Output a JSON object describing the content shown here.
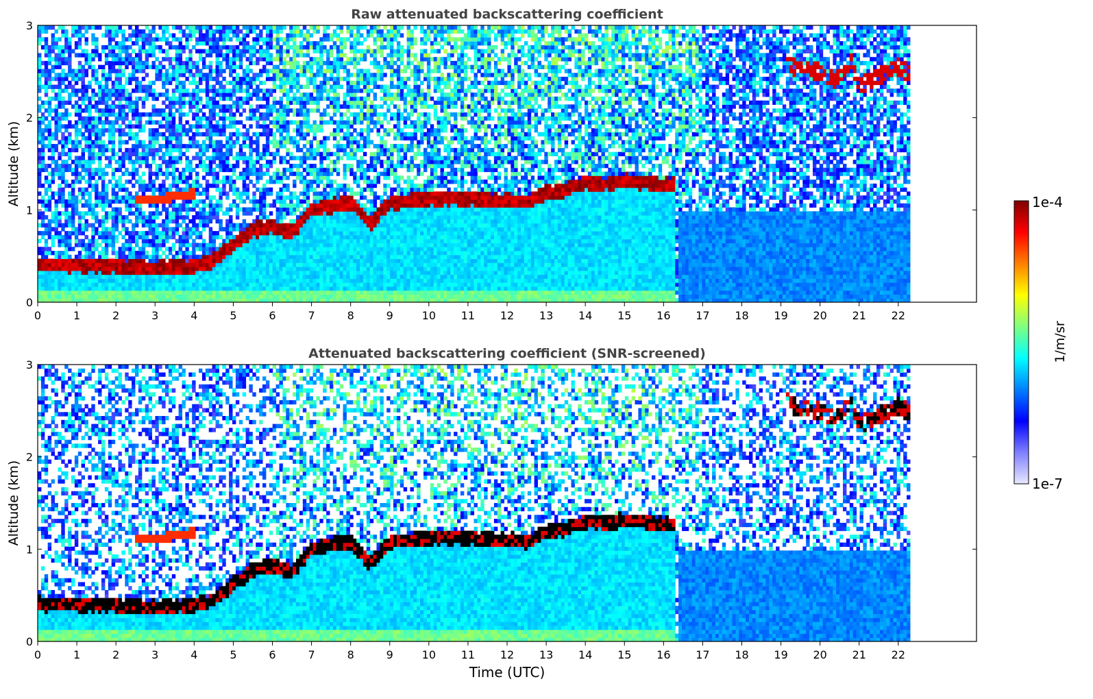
{
  "chart_data": [
    {
      "type": "heatmap",
      "title": "Raw attenuated backscattering coefficient",
      "xlabel": "",
      "ylabel": "Altitude (km)",
      "xlim": [
        0,
        24
      ],
      "ylim": [
        0,
        3
      ],
      "x_ticks": [
        "0",
        "1",
        "2",
        "3",
        "4",
        "5",
        "6",
        "7",
        "8",
        "9",
        "10",
        "11",
        "12",
        "13",
        "14",
        "15",
        "16",
        "17",
        "18",
        "19",
        "20",
        "21",
        "22"
      ],
      "y_ticks": [
        "0",
        "1",
        "2",
        "3"
      ],
      "data_end_time": 22.3,
      "layers": [
        {
          "name": "boundary-layer top",
          "points": [
            [
              0,
              0.41
            ],
            [
              1,
              0.4
            ],
            [
              2,
              0.39
            ],
            [
              3,
              0.37
            ],
            [
              4,
              0.39
            ],
            [
              4.5,
              0.45
            ],
            [
              5,
              0.62
            ],
            [
              5.5,
              0.78
            ],
            [
              6,
              0.82
            ],
            [
              6.5,
              0.75
            ],
            [
              7,
              1.0
            ],
            [
              7.5,
              1.05
            ],
            [
              8,
              1.08
            ],
            [
              8.5,
              0.85
            ],
            [
              9,
              1.08
            ],
            [
              9.5,
              1.1
            ],
            [
              10,
              1.12
            ],
            [
              11,
              1.12
            ],
            [
              12,
              1.1
            ],
            [
              12.5,
              1.08
            ],
            [
              13,
              1.18
            ],
            [
              13.5,
              1.22
            ],
            [
              14,
              1.3
            ],
            [
              14.5,
              1.28
            ],
            [
              15,
              1.32
            ],
            [
              15.5,
              1.3
            ],
            [
              16,
              1.26
            ],
            [
              16.3,
              1.28
            ]
          ]
        },
        {
          "name": "residual layer",
          "points": [
            [
              2.5,
              1.12
            ],
            [
              3,
              1.1
            ],
            [
              3.5,
              1.15
            ],
            [
              4,
              1.18
            ]
          ]
        },
        {
          "name": "high cloud",
          "points": [
            [
              19.1,
              2.65
            ],
            [
              19.3,
              2.55
            ],
            [
              20,
              2.5
            ],
            [
              20.4,
              2.4
            ],
            [
              20.8,
              2.6
            ],
            [
              21,
              2.35
            ],
            [
              21.5,
              2.45
            ],
            [
              22,
              2.55
            ],
            [
              22.3,
              2.48
            ]
          ]
        }
      ]
    },
    {
      "type": "heatmap",
      "title": "Attenuated backscattering coefficient (SNR-screened)",
      "xlabel": "Time (UTC)",
      "ylabel": "Altitude (km)",
      "xlim": [
        0,
        24
      ],
      "ylim": [
        0,
        3
      ],
      "x_ticks": [
        "0",
        "1",
        "2",
        "3",
        "4",
        "5",
        "6",
        "7",
        "8",
        "9",
        "10",
        "11",
        "12",
        "13",
        "14",
        "15",
        "16",
        "17",
        "18",
        "19",
        "20",
        "21",
        "22"
      ],
      "y_ticks": [
        "0",
        "1",
        "2",
        "3"
      ],
      "data_end_time": 22.3
    }
  ],
  "colorbar": {
    "label": "1/m/sr",
    "max_label": "1e-4",
    "min_label": "1e-7",
    "colormap": "jet",
    "colors": [
      "#e8e8ff",
      "#7f7fff",
      "#0000ff",
      "#0080ff",
      "#00ffff",
      "#80ff80",
      "#ffff00",
      "#ff8000",
      "#ff0000",
      "#800000"
    ]
  }
}
